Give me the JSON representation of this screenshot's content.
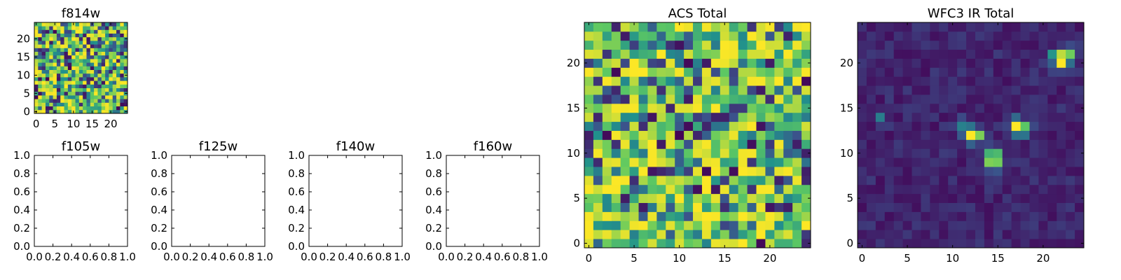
{
  "colormap": [
    "#440154",
    "#3b528b",
    "#21918c",
    "#5ec962",
    "#fde725"
  ],
  "chart_data": [
    {
      "type": "heatmap",
      "id": "f814w",
      "title": "f814w",
      "grid": [
        25,
        25
      ],
      "xticks": [
        "0",
        "5",
        "10",
        "15",
        "20"
      ],
      "yticks": [
        "0",
        "5",
        "10",
        "15",
        "20"
      ],
      "xlim": [
        -0.5,
        24.5
      ],
      "ylim": [
        -0.5,
        24.5
      ],
      "pattern": "noise",
      "seed": 814
    },
    {
      "type": "empty",
      "id": "f105w",
      "title": "f105w",
      "xticks": [
        "0.0",
        "0.2",
        "0.4",
        "0.6",
        "0.8",
        "1.0"
      ],
      "yticks": [
        "0.0",
        "0.2",
        "0.4",
        "0.6",
        "0.8",
        "1.0"
      ],
      "xlim": [
        0,
        1
      ],
      "ylim": [
        0,
        1
      ]
    },
    {
      "type": "empty",
      "id": "f125w",
      "title": "f125w",
      "xticks": [
        "0.0",
        "0.2",
        "0.4",
        "0.6",
        "0.8",
        "1.0"
      ],
      "yticks": [
        "0.0",
        "0.2",
        "0.4",
        "0.6",
        "0.8",
        "1.0"
      ],
      "xlim": [
        0,
        1
      ],
      "ylim": [
        0,
        1
      ]
    },
    {
      "type": "empty",
      "id": "f140w",
      "title": "f140w",
      "xticks": [
        "0.0",
        "0.2",
        "0.4",
        "0.6",
        "0.8",
        "1.0"
      ],
      "yticks": [
        "0.0",
        "0.2",
        "0.4",
        "0.6",
        "0.8",
        "1.0"
      ],
      "xlim": [
        0,
        1
      ],
      "ylim": [
        0,
        1
      ]
    },
    {
      "type": "empty",
      "id": "f160w",
      "title": "f160w",
      "xticks": [
        "0.0",
        "0.2",
        "0.4",
        "0.6",
        "0.8",
        "1.0"
      ],
      "yticks": [
        "0.0",
        "0.2",
        "0.4",
        "0.6",
        "0.8",
        "1.0"
      ],
      "xlim": [
        0,
        1
      ],
      "ylim": [
        0,
        1
      ]
    },
    {
      "type": "heatmap",
      "id": "acs-total",
      "title": "ACS Total",
      "grid": [
        25,
        25
      ],
      "xticks": [
        "0",
        "5",
        "10",
        "15",
        "20"
      ],
      "yticks": [
        "0",
        "5",
        "10",
        "15",
        "20"
      ],
      "xlim": [
        -0.5,
        24.5
      ],
      "ylim": [
        -0.5,
        24.5
      ],
      "pattern": "noise",
      "seed": 1337
    },
    {
      "type": "heatmap",
      "id": "wfc3-ir-total",
      "title": "WFC3 IR Total",
      "grid": [
        25,
        25
      ],
      "xticks": [
        "0",
        "5",
        "10",
        "15",
        "20"
      ],
      "yticks": [
        "0",
        "5",
        "10",
        "15",
        "20"
      ],
      "xlim": [
        -0.5,
        24.5
      ],
      "ylim": [
        -0.5,
        24.5
      ],
      "pattern": "sources",
      "seed": 4242,
      "sources": [
        {
          "x": 22,
          "y": 20,
          "peak": 1.0
        },
        {
          "x": 21.6,
          "y": 20.9,
          "peak": 0.7
        },
        {
          "x": 23,
          "y": 21,
          "peak": 0.6
        },
        {
          "x": 17,
          "y": 13,
          "peak": 1.0
        },
        {
          "x": 18,
          "y": 12.6,
          "peak": 0.55
        },
        {
          "x": 12,
          "y": 12,
          "peak": 1.0
        },
        {
          "x": 13,
          "y": 12,
          "peak": 0.5
        },
        {
          "x": 14.5,
          "y": 9,
          "peak": 1.0
        },
        {
          "x": 14.5,
          "y": 10,
          "peak": 0.75
        },
        {
          "x": 11,
          "y": 13,
          "peak": 0.3
        },
        {
          "x": 2,
          "y": 14,
          "peak": 0.25
        }
      ]
    }
  ]
}
